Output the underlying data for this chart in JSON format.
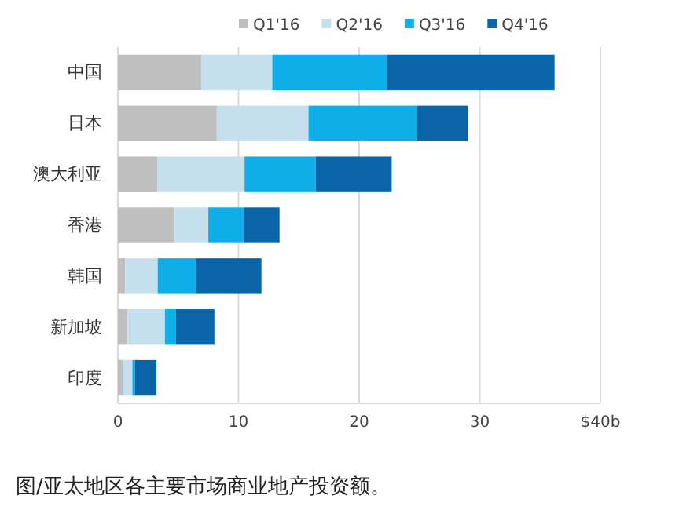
{
  "chart_data": {
    "type": "bar",
    "orientation": "horizontal",
    "stacked": true,
    "categories": [
      "中国",
      "日本",
      "澳大利亚",
      "香港",
      "韩国",
      "新加坡",
      "印度"
    ],
    "series": [
      {
        "name": "Q1'16",
        "color": "#bfbfbf",
        "values": [
          6.9,
          8.2,
          3.3,
          4.7,
          0.6,
          0.8,
          0.4
        ]
      },
      {
        "name": "Q2'16",
        "color": "#c5e0ec",
        "values": [
          5.9,
          7.6,
          7.2,
          2.8,
          2.7,
          3.1,
          0.8
        ]
      },
      {
        "name": "Q3'16",
        "color": "#0eaee8",
        "values": [
          9.5,
          9.0,
          5.9,
          2.9,
          3.2,
          0.9,
          0.2
        ]
      },
      {
        "name": "Q4'16",
        "color": "#0a65a8",
        "values": [
          13.9,
          4.2,
          6.3,
          3.0,
          5.4,
          3.2,
          1.8
        ]
      }
    ],
    "xlim": [
      0,
      40
    ],
    "xticks": [
      0,
      10,
      20,
      30,
      {
        "value": 40,
        "label": "$40b"
      }
    ],
    "grid": "x",
    "legend": "top",
    "annotations": [
      "图/亚太地区各主要市场商业地产投资额。"
    ]
  }
}
